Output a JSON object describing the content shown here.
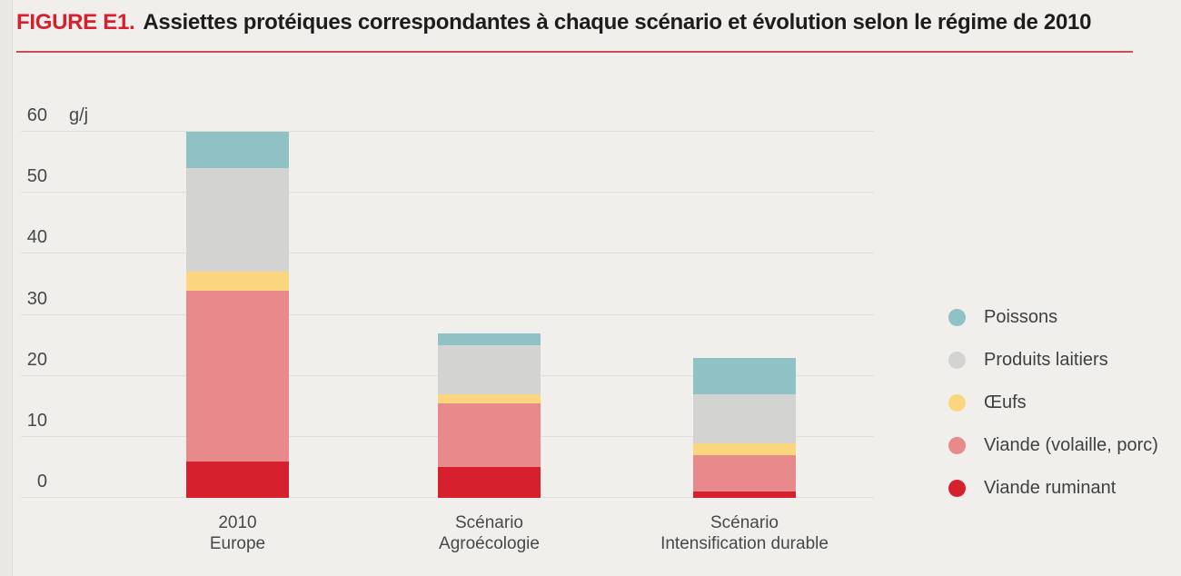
{
  "header": {
    "figure_label": "FIGURE E1.",
    "title": "Assiettes protéiques correspondantes à chaque scénario et évolution selon le régime de 2010"
  },
  "chart_data": {
    "type": "bar",
    "stacked": true,
    "unit_label": "g/j",
    "ylim": [
      0,
      60
    ],
    "yticks": [
      0,
      10,
      20,
      30,
      40,
      50,
      60
    ],
    "grid": true,
    "legend_position": "right",
    "categories": [
      {
        "lines": [
          "2010",
          "Europe"
        ]
      },
      {
        "lines": [
          "Scénario",
          "Agroécologie"
        ]
      },
      {
        "lines": [
          "Scénario",
          "Intensification durable"
        ]
      }
    ],
    "series": [
      {
        "name": "Viande ruminant",
        "color": "#d7202e",
        "values": [
          6,
          5,
          1
        ]
      },
      {
        "name": "Viande (volaille, porc)",
        "color": "#e8898b",
        "values": [
          28,
          10.5,
          6
        ]
      },
      {
        "name": "Œufs",
        "color": "#fbd67e",
        "values": [
          3,
          1.5,
          2
        ]
      },
      {
        "name": "Produits laitiers",
        "color": "#d3d4d2",
        "values": [
          17,
          8,
          8
        ]
      },
      {
        "name": "Poissons",
        "color": "#8fc1c5",
        "values": [
          6,
          2,
          6
        ]
      }
    ]
  },
  "legend": {
    "items": [
      {
        "label": "Poissons",
        "color": "#8fc1c5"
      },
      {
        "label": "Produits laitiers",
        "color": "#d3d4d2"
      },
      {
        "label": "Œufs",
        "color": "#fbd67e"
      },
      {
        "label": "Viande (volaille, porc)",
        "color": "#e8898b"
      },
      {
        "label": "Viande ruminant",
        "color": "#d7202e"
      }
    ]
  },
  "colors": {
    "accent_red": "#d7202e",
    "rule_red": "#cb4c55",
    "background": "#f0efec",
    "gridline": "#dfdedb",
    "text_dark": "#1e1c1d",
    "text_gray": "#47484a"
  }
}
